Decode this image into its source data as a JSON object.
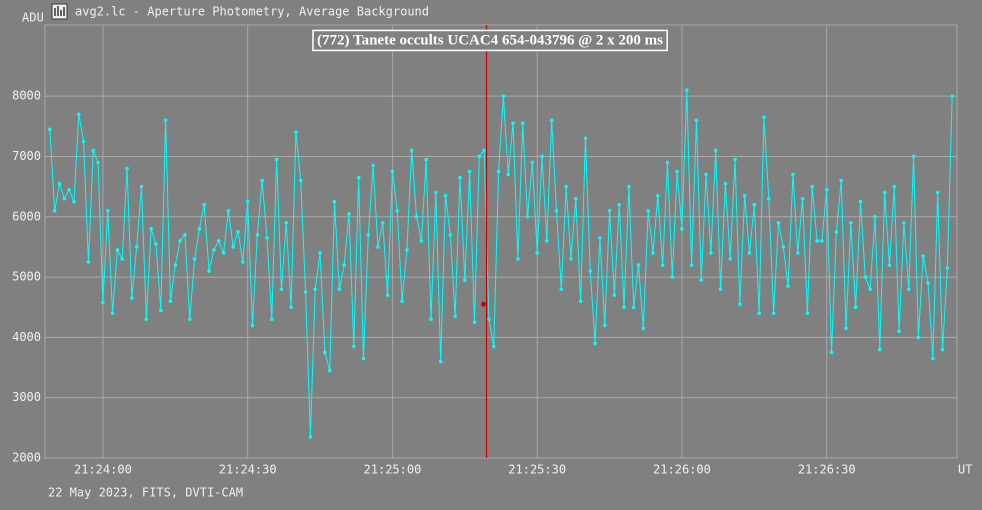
{
  "chart_data": {
    "type": "line",
    "title": "avg2.lc - Aperture Photometry, Average Background",
    "annotation": "(772) Tanete occults UCAC4 654-043796 @ 2 x 200 ms",
    "footer": "22 May 2023, FITS, DVTI-CAM",
    "y_label": "ADU",
    "x_label": "UT",
    "grid": true,
    "xlim": [
      77028,
      77217
    ],
    "ylim": [
      2000,
      9180
    ],
    "yticks": [
      2000,
      3000,
      4000,
      5000,
      6000,
      7000,
      8000
    ],
    "xticks": [
      {
        "value": 77040,
        "label": "21:24:00"
      },
      {
        "value": 77070,
        "label": "21:24:30"
      },
      {
        "value": 77100,
        "label": "21:25:00"
      },
      {
        "value": 77130,
        "label": "21:25:30"
      },
      {
        "value": 77160,
        "label": "21:26:00"
      },
      {
        "value": 77190,
        "label": "21:26:30"
      }
    ],
    "event": {
      "x": 77119.5,
      "y": 4550,
      "color": "#cc0000"
    },
    "x": [
      77029,
      77030,
      77031,
      77032,
      77033,
      77034,
      77035,
      77036,
      77037,
      77038,
      77039,
      77040,
      77041,
      77042,
      77043,
      77044,
      77045,
      77046,
      77047,
      77048,
      77049,
      77050,
      77051,
      77052,
      77053,
      77054,
      77055,
      77056,
      77057,
      77058,
      77059,
      77060,
      77061,
      77062,
      77063,
      77064,
      77065,
      77066,
      77067,
      77068,
      77069,
      77070,
      77071,
      77072,
      77073,
      77074,
      77075,
      77076,
      77077,
      77078,
      77079,
      77080,
      77081,
      77082,
      77083,
      77084,
      77085,
      77086,
      77087,
      77088,
      77089,
      77090,
      77091,
      77092,
      77093,
      77094,
      77095,
      77096,
      77097,
      77098,
      77099,
      77100,
      77101,
      77102,
      77103,
      77104,
      77105,
      77106,
      77107,
      77108,
      77109,
      77110,
      77111,
      77112,
      77113,
      77114,
      77115,
      77116,
      77117,
      77118,
      77119,
      77120,
      77121,
      77122,
      77123,
      77124,
      77125,
      77126,
      77127,
      77128,
      77129,
      77130,
      77131,
      77132,
      77133,
      77134,
      77135,
      77136,
      77137,
      77138,
      77139,
      77140,
      77141,
      77142,
      77143,
      77144,
      77145,
      77146,
      77147,
      77148,
      77149,
      77150,
      77151,
      77152,
      77153,
      77154,
      77155,
      77156,
      77157,
      77158,
      77159,
      77160,
      77161,
      77162,
      77163,
      77164,
      77165,
      77166,
      77167,
      77168,
      77169,
      77170,
      77171,
      77172,
      77173,
      77174,
      77175,
      77176,
      77177,
      77178,
      77179,
      77180,
      77181,
      77182,
      77183,
      77184,
      77185,
      77186,
      77187,
      77188,
      77189,
      77190,
      77191,
      77192,
      77193,
      77194,
      77195,
      77196,
      77197,
      77198,
      77199,
      77200,
      77201,
      77202,
      77203,
      77204,
      77205,
      77206,
      77207,
      77208,
      77209,
      77210,
      77211,
      77212,
      77213,
      77214,
      77215,
      77216
    ],
    "series": [
      {
        "color": "#00ffff",
        "values": [
          7450,
          6100,
          6550,
          6300,
          6450,
          6250,
          7700,
          7250,
          5250,
          7100,
          6900,
          4580,
          6100,
          4400,
          5450,
          5300,
          6800,
          4650,
          5500,
          6500,
          4300,
          5800,
          5550,
          4450,
          7600,
          4600,
          5200,
          5600,
          5700,
          4300,
          5300,
          5800,
          6200,
          5100,
          5450,
          5600,
          5400,
          6100,
          5500,
          5750,
          5250,
          6250,
          4200,
          5700,
          6600,
          5650,
          4300,
          6950,
          4800,
          5900,
          4500,
          7400,
          6600,
          4750,
          2350,
          4800,
          5400,
          3750,
          3450,
          6250,
          4800,
          5200,
          6050,
          3850,
          6650,
          3650,
          5700,
          6850,
          5500,
          5900,
          4700,
          6750,
          6100,
          4600,
          5450,
          7100,
          6000,
          5600,
          6950,
          4300,
          6400,
          3600,
          6350,
          5700,
          4350,
          6650,
          4950,
          6750,
          4250,
          7000,
          7100,
          4300,
          3850,
          6750,
          8000,
          6700,
          7550,
          5300,
          7550,
          6000,
          6900,
          5400,
          7000,
          5600,
          7600,
          6100,
          4800,
          6500,
          5300,
          6300,
          4600,
          7300,
          5100,
          3900,
          5650,
          4200,
          6100,
          4700,
          6200,
          4500,
          6500,
          4500,
          5200,
          4150,
          6100,
          5400,
          6350,
          5200,
          6900,
          5000,
          6750,
          5800,
          8100,
          5200,
          7600,
          4950,
          6700,
          5400,
          7100,
          4800,
          6550,
          5300,
          6950,
          4550,
          6350,
          5400,
          6200,
          4400,
          7650,
          6300,
          4400,
          5900,
          5500,
          4850,
          6700,
          5400,
          6300,
          4400,
          6500,
          5600,
          5600,
          6450,
          3750,
          5750,
          6600,
          4150,
          5900,
          4500,
          6250,
          5000,
          4800,
          6000,
          3800,
          6400,
          5200,
          6500,
          4100,
          5900,
          4800,
          7000,
          4000,
          5350,
          4900,
          3650,
          6400,
          3800,
          5150,
          8000
        ]
      }
    ]
  }
}
